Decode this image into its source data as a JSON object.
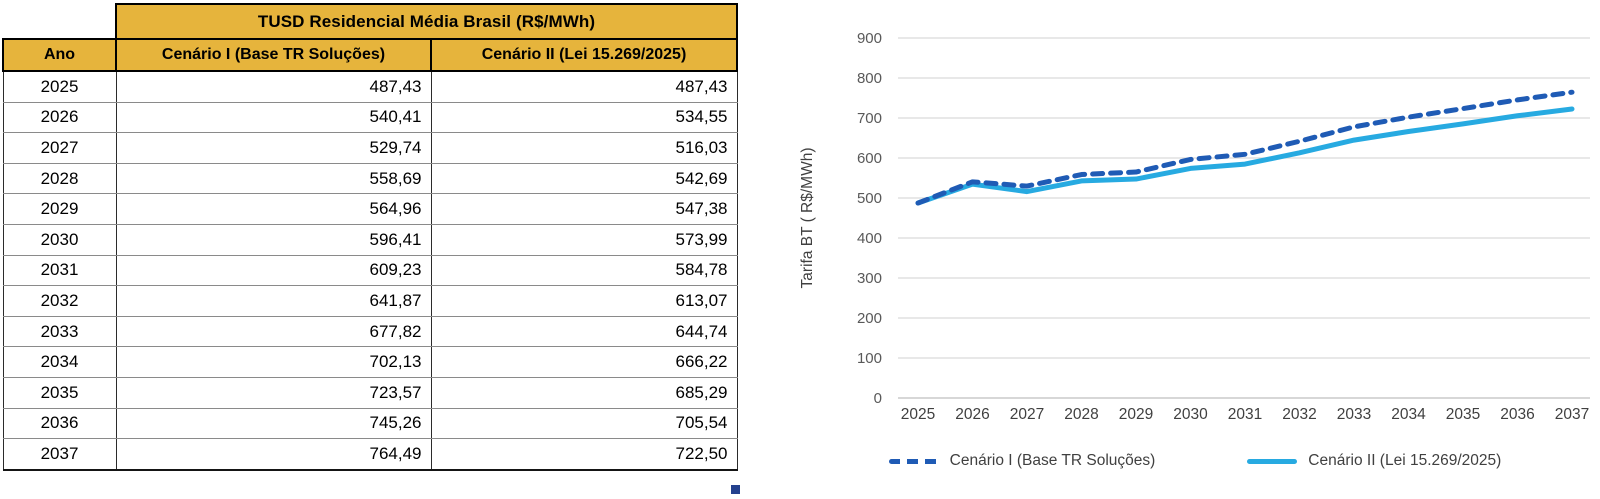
{
  "table": {
    "title": "TUSD  Residencial Média Brasil (R$/MWh)",
    "columns": [
      "Ano",
      "Cenário I (Base TR Soluções)",
      "Cenário II (Lei 15.269/2025)"
    ],
    "header_bg": "#E6B43C",
    "rows": [
      [
        "2025",
        "487,43",
        "487,43"
      ],
      [
        "2026",
        "540,41",
        "534,55"
      ],
      [
        "2027",
        "529,74",
        "516,03"
      ],
      [
        "2028",
        "558,69",
        "542,69"
      ],
      [
        "2029",
        "564,96",
        "547,38"
      ],
      [
        "2030",
        "596,41",
        "573,99"
      ],
      [
        "2031",
        "609,23",
        "584,78"
      ],
      [
        "2032",
        "641,87",
        "613,07"
      ],
      [
        "2033",
        "677,82",
        "644,74"
      ],
      [
        "2034",
        "702,13",
        "666,22"
      ],
      [
        "2035",
        "723,57",
        "685,29"
      ],
      [
        "2036",
        "745,26",
        "705,54"
      ],
      [
        "2037",
        "764,49",
        "722,50"
      ]
    ]
  },
  "chart_data": {
    "type": "line",
    "title": "",
    "xlabel": "",
    "ylabel": "Tarifa BT ( R$/MWh)",
    "x": [
      2025,
      2026,
      2027,
      2028,
      2029,
      2030,
      2031,
      2032,
      2033,
      2034,
      2035,
      2036,
      2037
    ],
    "series": [
      {
        "name": "Cenário I (Base TR Soluções)",
        "style": "dashed",
        "color": "#1F5BB5",
        "values": [
          487.43,
          540.41,
          529.74,
          558.69,
          564.96,
          596.41,
          609.23,
          641.87,
          677.82,
          702.13,
          723.57,
          745.26,
          764.49
        ]
      },
      {
        "name": "Cenário II (Lei 15.269/2025)",
        "style": "solid",
        "color": "#27AAE1",
        "values": [
          487.43,
          534.55,
          516.03,
          542.69,
          547.38,
          573.99,
          584.78,
          613.07,
          644.74,
          666.22,
          685.29,
          705.54,
          722.5
        ]
      }
    ],
    "ylim": [
      0,
      900
    ],
    "yticks": [
      0,
      100,
      200,
      300,
      400,
      500,
      600,
      700,
      800,
      900
    ],
    "grid": true,
    "gridline_color": "#D9D9D9",
    "baseline_color": "#BFBFBF",
    "tick_color": "#595959",
    "xlabel_color": "#404040",
    "legend_position": "bottom"
  }
}
